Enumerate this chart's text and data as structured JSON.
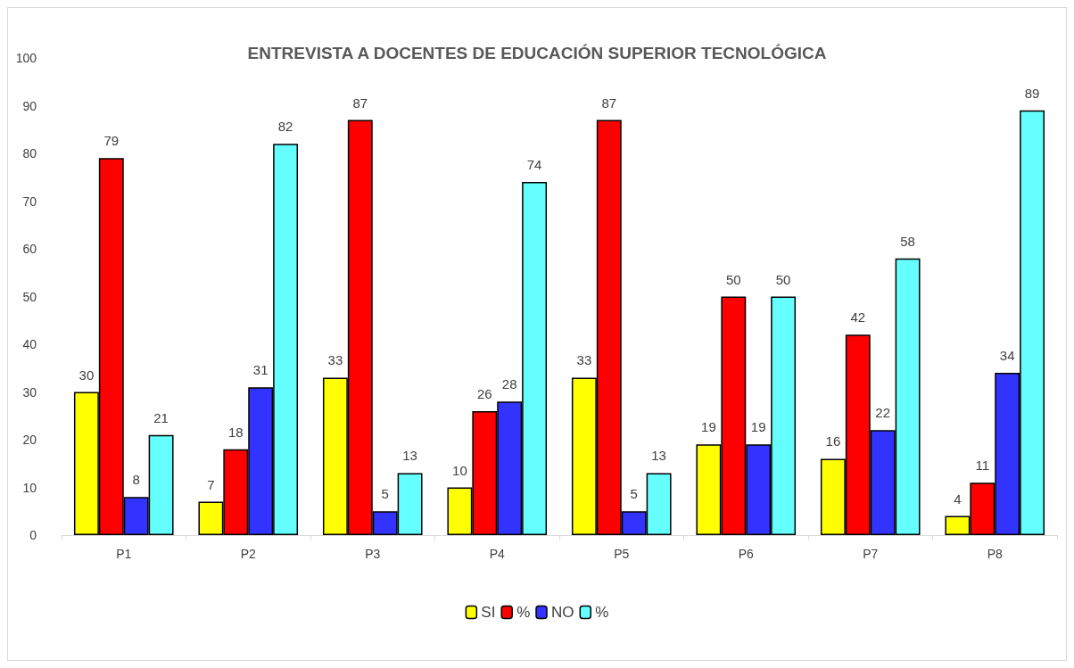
{
  "chart_data": {
    "type": "bar",
    "title": "ENTREVISTA A DOCENTES DE EDUCACIÓN SUPERIOR TECNOLÓGICA",
    "categories": [
      "P1",
      "P2",
      "P3",
      "P4",
      "P5",
      "P6",
      "P7",
      "P8"
    ],
    "series": [
      {
        "name": "SI",
        "color": "#ffff00",
        "values": [
          30,
          7,
          33,
          10,
          33,
          19,
          16,
          4
        ]
      },
      {
        "name": "%",
        "color": "#ff0000",
        "values": [
          79,
          18,
          87,
          26,
          87,
          50,
          42,
          11
        ]
      },
      {
        "name": "NO",
        "color": "#3333ff",
        "values": [
          8,
          31,
          5,
          28,
          5,
          19,
          22,
          34
        ]
      },
      {
        "name": "%",
        "color": "#66ffff",
        "values": [
          21,
          82,
          13,
          74,
          13,
          50,
          58,
          89
        ]
      }
    ],
    "ylim": [
      0,
      100
    ],
    "yticks": [
      0,
      10,
      20,
      30,
      40,
      50,
      60,
      70,
      80,
      90,
      100
    ],
    "grid": false,
    "legend": "bottom",
    "data_labels": true
  }
}
